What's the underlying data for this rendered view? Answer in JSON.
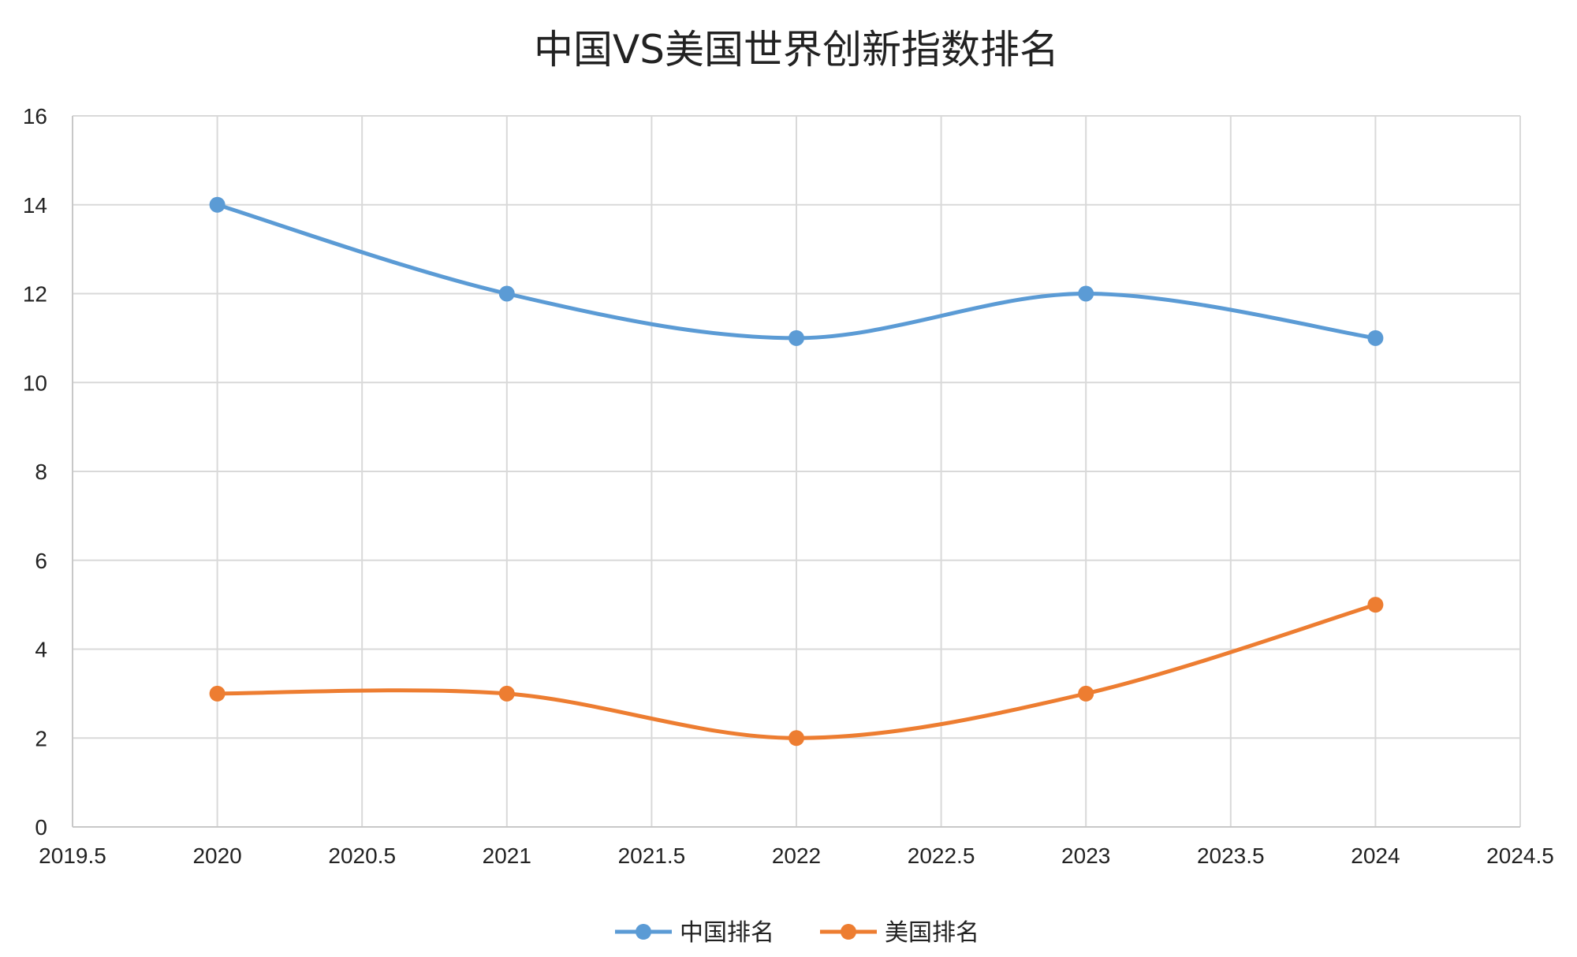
{
  "chart_data": {
    "type": "line",
    "title": "中国VS美国世界创新指数排名",
    "xlabel": "",
    "ylabel": "",
    "xlim": [
      2019.5,
      2024.5
    ],
    "ylim": [
      0,
      16
    ],
    "x_ticks": [
      "2019.5",
      "2020",
      "2020.5",
      "2021",
      "2021.5",
      "2022",
      "2022.5",
      "2023",
      "2023.5",
      "2024",
      "2024.5"
    ],
    "y_ticks": [
      "0",
      "2",
      "4",
      "6",
      "8",
      "10",
      "12",
      "14",
      "16"
    ],
    "x": [
      2020,
      2021,
      2022,
      2023,
      2024
    ],
    "grid": true,
    "smooth": true,
    "legend_position": "bottom",
    "series": [
      {
        "name": "中国排名",
        "color": "#5b9bd5",
        "values": [
          14,
          12,
          11,
          12,
          11
        ]
      },
      {
        "name": "美国排名",
        "color": "#ed7d31",
        "values": [
          3,
          3,
          2,
          3,
          5
        ]
      }
    ]
  }
}
